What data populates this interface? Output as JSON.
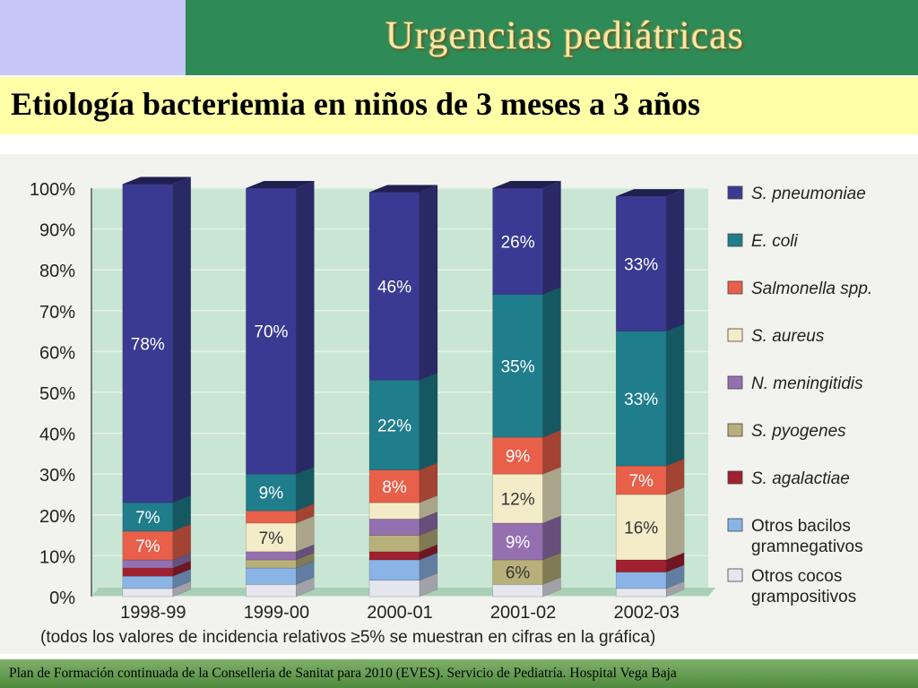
{
  "header": {
    "title": "Urgencias pediátricas"
  },
  "slide": {
    "subtitle": "Etiología bacteriemia en niños de 3 meses a 3 años"
  },
  "footer": {
    "text": "Plan de Formación continuada de la Conselleria de Sanitat para 2010 (EVES). Servicio de Pediatría. Hospital Vega Baja"
  },
  "chart_data": {
    "type": "bar",
    "stacked": true,
    "percent": true,
    "categories": [
      "1998-99",
      "1999-00",
      "2000-01",
      "2001-02",
      "2002-03"
    ],
    "ylim": [
      0,
      100
    ],
    "yticks": [
      "0%",
      "10%",
      "20%",
      "30%",
      "40%",
      "50%",
      "60%",
      "70%",
      "80%",
      "90%",
      "100%"
    ],
    "note": "(todos los valores de incidencia relativos ≥5% se muestran en cifras en la gráfica)",
    "legend_position": "right",
    "series": [
      {
        "name": "Otros cocos grampositivos",
        "color": "#e6e6ee",
        "values": [
          2,
          3,
          4,
          3,
          2
        ]
      },
      {
        "name": "Otros bacilos gramnegativos",
        "color": "#8ab4e6",
        "values": [
          3,
          4,
          5,
          0,
          4
        ]
      },
      {
        "name": "S. agalactiae",
        "color": "#a02030",
        "values": [
          2,
          0,
          2,
          0,
          3
        ]
      },
      {
        "name": "S. pyogenes",
        "color": "#b8b07a",
        "values": [
          0,
          2,
          4,
          6,
          0
        ]
      },
      {
        "name": "N. meningitidis",
        "color": "#9470b0",
        "values": [
          2,
          2,
          4,
          9,
          0
        ]
      },
      {
        "name": "S. aureus",
        "color": "#f4ecc8",
        "values": [
          0,
          7,
          4,
          12,
          16
        ]
      },
      {
        "name": "Salmonella spp.",
        "color": "#e8604a",
        "values": [
          7,
          3,
          8,
          9,
          7
        ]
      },
      {
        "name": "E. coli",
        "color": "#1f7d8c",
        "values": [
          7,
          9,
          22,
          35,
          33
        ]
      },
      {
        "name": "S. pneumoniae",
        "color": "#3a3a92",
        "values": [
          78,
          70,
          46,
          26,
          33
        ]
      }
    ],
    "labels": [
      {
        "series": "S. pneumoniae",
        "texts": [
          "78%",
          "70%",
          "46%",
          "26%",
          "33%"
        ]
      },
      {
        "series": "E. coli",
        "texts": [
          "7%",
          "9%",
          "22%",
          "35%",
          "33%"
        ]
      },
      {
        "series": "Salmonella spp.",
        "texts": [
          "7%",
          "",
          "8%",
          "9%",
          "7%"
        ]
      },
      {
        "series": "S. aureus",
        "texts": [
          "",
          "7%",
          "",
          "12%",
          "16%"
        ]
      },
      {
        "series": "N. meningitidis",
        "texts": [
          "",
          "",
          "",
          "9%",
          ""
        ]
      },
      {
        "series": "S. pyogenes",
        "texts": [
          "",
          "",
          "",
          "6%",
          ""
        ]
      }
    ],
    "legend": [
      [
        "S. pneumoniae"
      ],
      [
        "E. coli"
      ],
      [
        "Salmonella spp."
      ],
      [
        "S. aureus"
      ],
      [
        "N. meningitidis"
      ],
      [
        "S. pyogenes"
      ],
      [
        "S. agalactiae"
      ],
      [
        "Otros bacilos",
        "gramnegativos"
      ],
      [
        "Otros cocos",
        "grampositivos"
      ]
    ],
    "legend_series": [
      "S. pneumoniae",
      "E. coli",
      "Salmonella spp.",
      "S. aureus",
      "N. meningitidis",
      "S. pyogenes",
      "S. agalactiae",
      "Otros bacilos gramnegativos",
      "Otros cocos grampositivos"
    ]
  }
}
